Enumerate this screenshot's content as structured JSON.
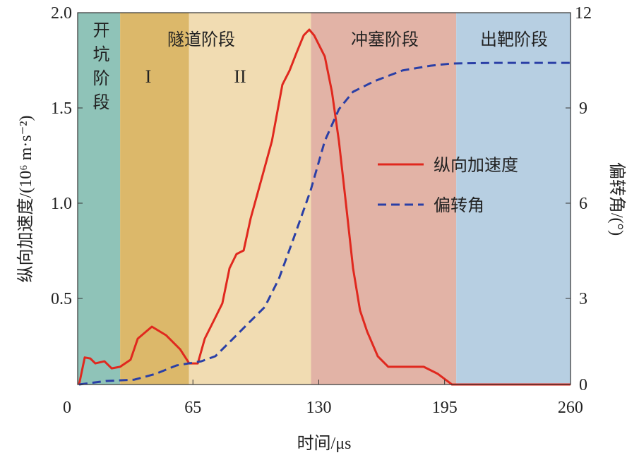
{
  "chart_data": {
    "type": "line",
    "title": "",
    "xlabel": "时间/μs",
    "ylabel": "纵向加速度/(10⁶ m·s⁻²)",
    "ylabel_right": "偏转角/(°)",
    "xlim": [
      0,
      260
    ],
    "ylim": [
      0.05,
      2.0
    ],
    "ylim_right": [
      0,
      12
    ],
    "xticks": [
      "0",
      "65",
      "130",
      "195",
      "260"
    ],
    "xtick_values": [
      0,
      65,
      130,
      195,
      260
    ],
    "yticks": [
      "0.5",
      "1.0",
      "1.5",
      "2.0"
    ],
    "ytick_values": [
      0.5,
      1.0,
      1.5,
      2.0
    ],
    "yticks_right": [
      "0",
      "3",
      "6",
      "9",
      "12"
    ],
    "ytick_values_right": [
      0,
      3,
      6,
      9,
      12
    ],
    "grid": false,
    "legend_position": "center-right",
    "regions": [
      {
        "label": "开坑阶段",
        "start": 5.5,
        "end": 27.4,
        "color": "#8fc3b8"
      },
      {
        "label": "I",
        "start": 27.4,
        "end": 63,
        "color": "#dcb86a"
      },
      {
        "label": "II",
        "start": 63,
        "end": 126,
        "color": "#f1dcb2"
      },
      {
        "label": "冲塞阶段",
        "start": 126,
        "end": 201,
        "color": "#e2b3a6"
      },
      {
        "label": "出靶阶段",
        "start": 201,
        "end": 260,
        "color": "#b7cfe2"
      }
    ],
    "region_title_tunnel": "隧道阶段",
    "series": [
      {
        "name": "纵向加速度",
        "axis": "left",
        "color": "#e0281e",
        "style": "solid",
        "x": [
          6.2,
          9.1,
          12.0,
          14.6,
          19.3,
          23.0,
          27.4,
          32.8,
          36.5,
          43.8,
          51.1,
          58.4,
          63.1,
          67.5,
          71.1,
          76.6,
          80.2,
          83.9,
          87.5,
          91.2,
          94.8,
          100.3,
          105.8,
          111.2,
          114.9,
          118.5,
          122.2,
          125.1,
          127.6,
          133.1,
          136.8,
          140.4,
          144.1,
          147.7,
          151.3,
          155.0,
          160.5,
          165.9,
          173.2,
          184.2,
          191.5,
          198.8,
          210,
          260
        ],
        "y": [
          0.048,
          0.19,
          0.185,
          0.159,
          0.17,
          0.133,
          0.141,
          0.178,
          0.289,
          0.352,
          0.307,
          0.233,
          0.159,
          0.159,
          0.289,
          0.4,
          0.474,
          0.659,
          0.733,
          0.752,
          0.919,
          1.122,
          1.326,
          1.622,
          1.696,
          1.789,
          1.881,
          1.911,
          1.881,
          1.77,
          1.585,
          1.326,
          0.993,
          0.659,
          0.437,
          0.326,
          0.196,
          0.141,
          0.141,
          0.141,
          0.104,
          0.048,
          0.045,
          0.045
        ]
      },
      {
        "name": "偏转角",
        "axis": "right",
        "color": "#2a3fa6",
        "style": "dashed",
        "x": [
          6.2,
          20.1,
          34.6,
          45.6,
          56.5,
          69.3,
          76.6,
          85.7,
          93.0,
          102.1,
          109.4,
          116.7,
          125.8,
          133.1,
          140.4,
          147.7,
          158.6,
          173.2,
          187.8,
          198.8,
          220.6,
          260
        ],
        "y": [
          0.29,
          0.4,
          0.44,
          0.62,
          0.89,
          1.02,
          1.18,
          1.73,
          2.18,
          2.73,
          3.62,
          4.84,
          6.4,
          7.96,
          8.96,
          9.51,
          9.84,
          10.18,
          10.33,
          10.4,
          10.42,
          10.42
        ]
      }
    ]
  }
}
